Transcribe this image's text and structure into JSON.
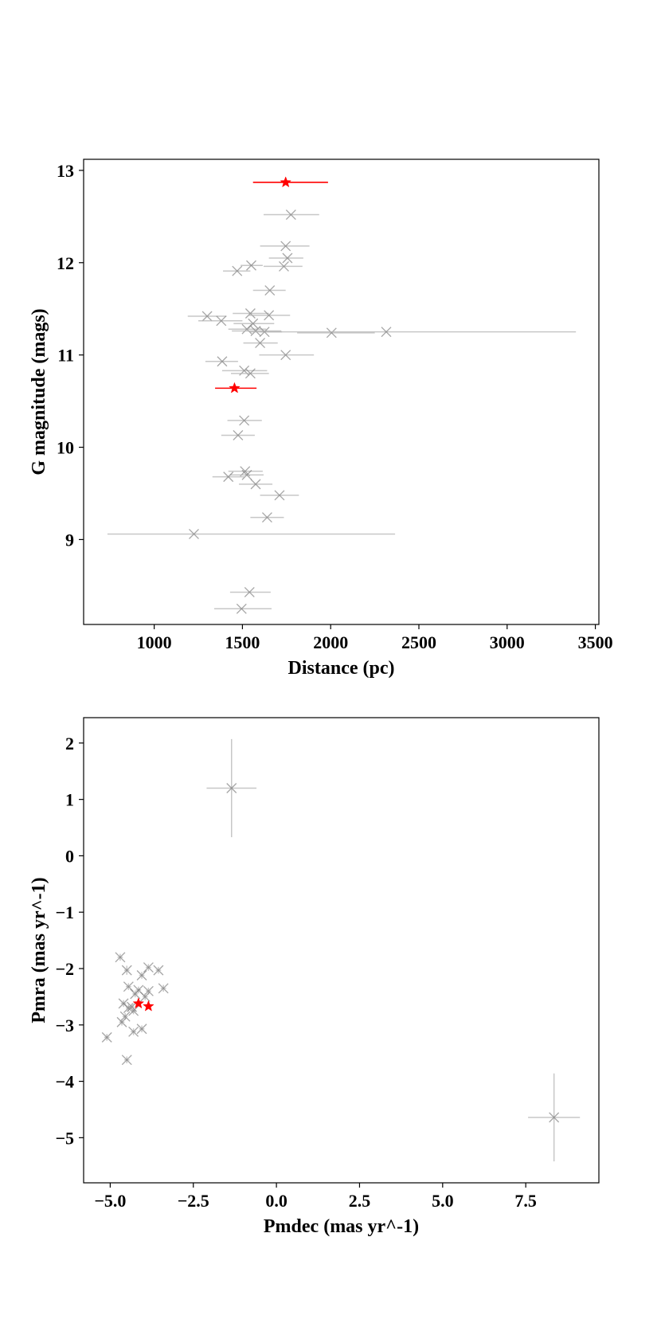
{
  "colors": {
    "background": "#ffffff",
    "axis": "#000000",
    "cluster_member": "#808080",
    "highlight": "#ff0000"
  },
  "chart_data": [
    {
      "type": "scatter",
      "title": "",
      "xlabel": "Distance (pc)",
      "ylabel": "G magnitude (mags)",
      "xlim": [
        600,
        3520
      ],
      "ylim": [
        8.08,
        13.12
      ],
      "xticks": [
        1000,
        1500,
        2000,
        2500,
        3000,
        3500
      ],
      "xtick_labels": [
        "1000",
        "1500",
        "2000",
        "2500",
        "3000",
        "3500"
      ],
      "yticks": [
        9,
        10,
        11,
        12,
        13
      ],
      "ytick_labels": [
        "9",
        "10",
        "11",
        "12",
        "13"
      ],
      "grid": false,
      "series": [
        {
          "marker": "x",
          "color": "#808080",
          "points": [
            {
              "x": 1775,
              "y": 12.52,
              "xerr_low": 1620,
              "xerr_high": 1935
            },
            {
              "x": 1745,
              "y": 12.18,
              "xerr_low": 1600,
              "xerr_high": 1880
            },
            {
              "x": 1755,
              "y": 12.05,
              "xerr_low": 1650,
              "xerr_high": 1845
            },
            {
              "x": 1550,
              "y": 11.97,
              "xerr_low": 1490,
              "xerr_high": 1615
            },
            {
              "x": 1735,
              "y": 11.96,
              "xerr_low": 1620,
              "xerr_high": 1840
            },
            {
              "x": 1470,
              "y": 11.91,
              "xerr_low": 1390,
              "xerr_high": 1545
            },
            {
              "x": 1655,
              "y": 11.7,
              "xerr_low": 1560,
              "xerr_high": 1745
            },
            {
              "x": 1545,
              "y": 11.45,
              "xerr_low": 1445,
              "xerr_high": 1650
            },
            {
              "x": 1650,
              "y": 11.43,
              "xerr_low": 1535,
              "xerr_high": 1770
            },
            {
              "x": 1300,
              "y": 11.42,
              "xerr_low": 1190,
              "xerr_high": 1410
            },
            {
              "x": 1380,
              "y": 11.37,
              "xerr_low": 1250,
              "xerr_high": 1500
            },
            {
              "x": 1560,
              "y": 11.34,
              "xerr_low": 1450,
              "xerr_high": 1680
            },
            {
              "x": 1525,
              "y": 11.28,
              "xerr_low": 1420,
              "xerr_high": 1635
            },
            {
              "x": 1575,
              "y": 11.26,
              "xerr_low": 1440,
              "xerr_high": 1720
            },
            {
              "x": 1625,
              "y": 11.25,
              "xerr_low": 1540,
              "xerr_high": 1725
            },
            {
              "x": 2005,
              "y": 11.24,
              "xerr_low": 1810,
              "xerr_high": 2250
            },
            {
              "x": 2315,
              "y": 11.25,
              "xerr_low": 1600,
              "xerr_high": 3390
            },
            {
              "x": 1600,
              "y": 11.13,
              "xerr_low": 1505,
              "xerr_high": 1700
            },
            {
              "x": 1745,
              "y": 11.0,
              "xerr_low": 1595,
              "xerr_high": 1905
            },
            {
              "x": 1385,
              "y": 10.93,
              "xerr_low": 1290,
              "xerr_high": 1475
            },
            {
              "x": 1510,
              "y": 10.83,
              "xerr_low": 1385,
              "xerr_high": 1640
            },
            {
              "x": 1545,
              "y": 10.8,
              "xerr_low": 1435,
              "xerr_high": 1650
            },
            {
              "x": 1510,
              "y": 10.29,
              "xerr_low": 1415,
              "xerr_high": 1610
            },
            {
              "x": 1475,
              "y": 10.13,
              "xerr_low": 1380,
              "xerr_high": 1570
            },
            {
              "x": 1515,
              "y": 9.74,
              "xerr_low": 1420,
              "xerr_high": 1615
            },
            {
              "x": 1525,
              "y": 9.7,
              "xerr_low": 1430,
              "xerr_high": 1620
            },
            {
              "x": 1420,
              "y": 9.68,
              "xerr_low": 1330,
              "xerr_high": 1515
            },
            {
              "x": 1575,
              "y": 9.6,
              "xerr_low": 1480,
              "xerr_high": 1670
            },
            {
              "x": 1710,
              "y": 9.48,
              "xerr_low": 1600,
              "xerr_high": 1820
            },
            {
              "x": 1640,
              "y": 9.24,
              "xerr_low": 1545,
              "xerr_high": 1735
            },
            {
              "x": 1225,
              "y": 9.06,
              "xerr_low": 735,
              "xerr_high": 2365
            },
            {
              "x": 1540,
              "y": 8.43,
              "xerr_low": 1430,
              "xerr_high": 1660
            },
            {
              "x": 1495,
              "y": 8.25,
              "xerr_low": 1340,
              "xerr_high": 1665
            }
          ]
        },
        {
          "marker": "star",
          "color": "#ff0000",
          "points": [
            {
              "x": 1745,
              "y": 12.87,
              "xerr_low": 1560,
              "xerr_high": 1985
            },
            {
              "x": 1455,
              "y": 10.64,
              "xerr_low": 1345,
              "xerr_high": 1580
            }
          ]
        }
      ]
    },
    {
      "type": "scatter",
      "title": "",
      "xlabel": "Pmdec (mas yr^-1)",
      "ylabel": "Pmra (mas yr^-1)",
      "xlim": [
        -5.8,
        9.7
      ],
      "ylim": [
        -5.8,
        2.45
      ],
      "xticks": [
        -5.0,
        -2.5,
        0.0,
        2.5,
        5.0,
        7.5
      ],
      "xtick_labels": [
        "−5.0",
        "−2.5",
        "0.0",
        "2.5",
        "5.0",
        "7.5"
      ],
      "yticks": [
        -5,
        -4,
        -3,
        -2,
        -1,
        0,
        1,
        2
      ],
      "ytick_labels": [
        "−5",
        "−4",
        "−3",
        "−2",
        "−1",
        "0",
        "1",
        "2"
      ],
      "grid": false,
      "series": [
        {
          "marker": "x",
          "color": "#808080",
          "points": [
            {
              "x": -1.35,
              "y": 1.2,
              "xerr": 0.75,
              "yerr": 0.87
            },
            {
              "x": 8.35,
              "y": -4.64,
              "xerr": 0.78,
              "yerr": 0.78
            },
            {
              "x": -4.7,
              "y": -1.8,
              "xerr": 0.08,
              "yerr": 0.06
            },
            {
              "x": -4.5,
              "y": -2.03,
              "xerr": 0.08,
              "yerr": 0.08
            },
            {
              "x": -3.85,
              "y": -1.98,
              "xerr": 0.08,
              "yerr": 0.06
            },
            {
              "x": -3.55,
              "y": -2.03,
              "xerr": 0.08,
              "yerr": 0.06
            },
            {
              "x": -4.05,
              "y": -2.12,
              "xerr": 0.08,
              "yerr": 0.06
            },
            {
              "x": -4.45,
              "y": -2.32,
              "xerr": 0.08,
              "yerr": 0.06
            },
            {
              "x": -4.15,
              "y": -2.38,
              "xerr": 0.08,
              "yerr": 0.06
            },
            {
              "x": -3.85,
              "y": -2.4,
              "xerr": 0.08,
              "yerr": 0.06
            },
            {
              "x": -4.25,
              "y": -2.45,
              "xerr": 0.08,
              "yerr": 0.06
            },
            {
              "x": -3.4,
              "y": -2.35,
              "xerr": 0.08,
              "yerr": 0.06
            },
            {
              "x": -3.95,
              "y": -2.5,
              "xerr": 0.08,
              "yerr": 0.06
            },
            {
              "x": -4.6,
              "y": -2.62,
              "xerr": 0.08,
              "yerr": 0.06
            },
            {
              "x": -4.45,
              "y": -2.7,
              "xerr": 0.08,
              "yerr": 0.06
            },
            {
              "x": -4.3,
              "y": -2.75,
              "xerr": 0.08,
              "yerr": 0.06
            },
            {
              "x": -4.55,
              "y": -2.85,
              "xerr": 0.08,
              "yerr": 0.06
            },
            {
              "x": -4.65,
              "y": -2.95,
              "xerr": 0.08,
              "yerr": 0.06
            },
            {
              "x": -4.35,
              "y": -2.68,
              "xerr": 0.08,
              "yerr": 0.06
            },
            {
              "x": -4.05,
              "y": -3.07,
              "xerr": 0.08,
              "yerr": 0.06
            },
            {
              "x": -4.3,
              "y": -3.12,
              "xerr": 0.08,
              "yerr": 0.06
            },
            {
              "x": -5.1,
              "y": -3.22,
              "xerr": 0.08,
              "yerr": 0.06
            },
            {
              "x": -4.5,
              "y": -3.62,
              "xerr": 0.08,
              "yerr": 0.06
            }
          ]
        },
        {
          "marker": "star",
          "color": "#ff0000",
          "points": [
            {
              "x": -4.15,
              "y": -2.62,
              "xerr": 0.05,
              "yerr": 0.04
            },
            {
              "x": -3.85,
              "y": -2.67,
              "xerr": 0.05,
              "yerr": 0.04
            }
          ]
        }
      ]
    }
  ]
}
